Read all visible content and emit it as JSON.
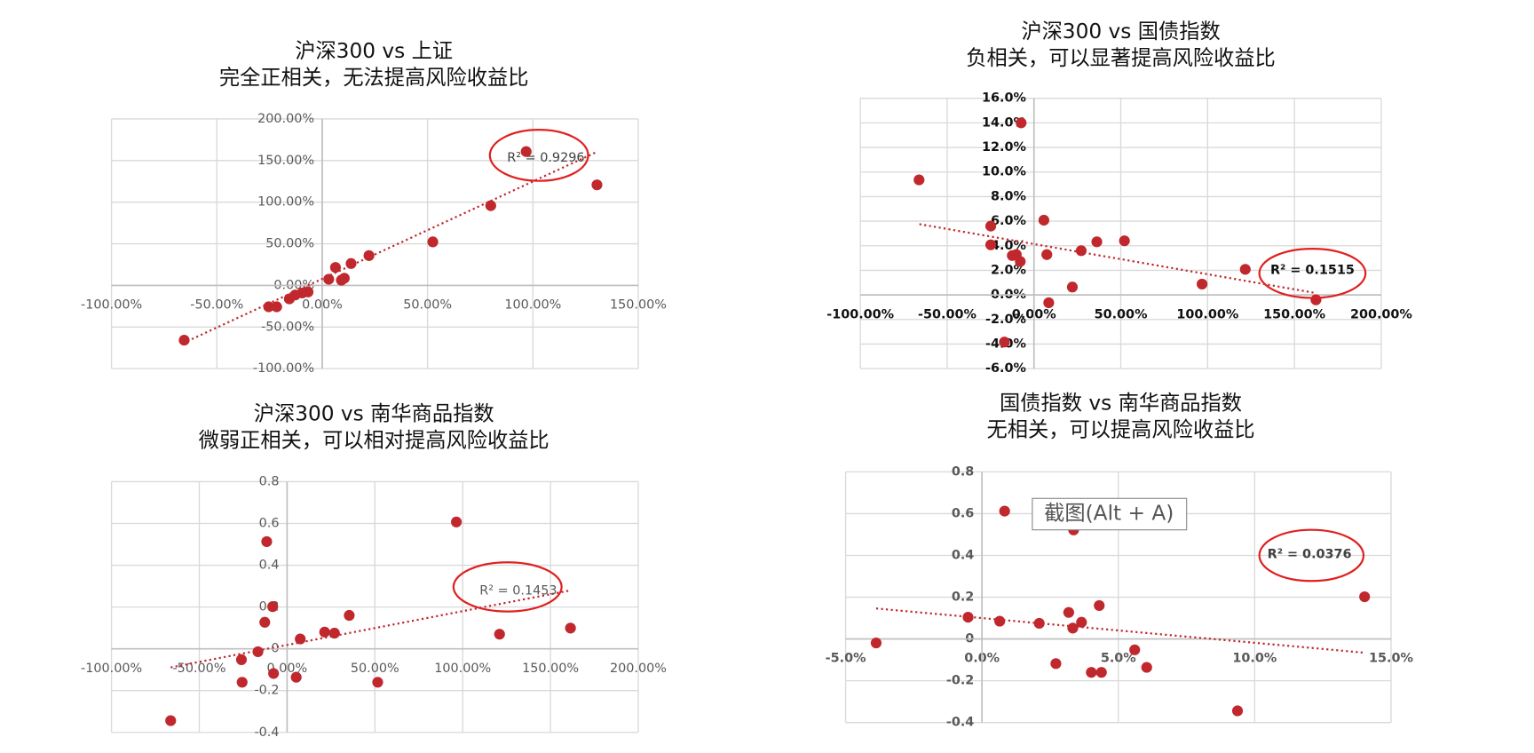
{
  "chart_data": [
    {
      "type": "scatter",
      "title": "沪深300 vs 上证",
      "subtitle": "完全正相关，无法提高风险收益比",
      "color": "#c0282d",
      "grid": true,
      "x": [
        -65.5,
        -25.4,
        -21.6,
        -15.6,
        -12.8,
        -9.5,
        -6.7,
        3.1,
        6.3,
        9.1,
        10.5,
        13.7,
        22.2,
        52.5,
        80,
        96.8,
        130.4
      ],
      "values": [
        -65.8,
        -25.7,
        -25.7,
        -16.2,
        -11.5,
        -9.1,
        -7.9,
        7.4,
        21.6,
        6.3,
        8.6,
        26.3,
        35.8,
        52.3,
        95.8,
        160.8,
        120.8
      ],
      "trendline": {
        "x": [
          -64,
          130
        ],
        "y": [
          -67,
          160
        ]
      },
      "annotation": "R² = 0.9296",
      "xlim": [
        -100,
        150
      ],
      "xticks": [
        {
          "value": -100,
          "label": "-100.00%"
        },
        {
          "value": -50,
          "label": "-50.00%"
        },
        {
          "value": 0,
          "label": "0.00%"
        },
        {
          "value": 50,
          "label": "50.00%"
        },
        {
          "value": 100,
          "label": "100.00%"
        },
        {
          "value": 150,
          "label": "150.00%"
        }
      ],
      "ylim": [
        -100,
        200
      ],
      "yticks": [
        {
          "value": -100,
          "label": "-100.00%"
        },
        {
          "value": -50,
          "label": "-50.00%"
        },
        {
          "value": 0,
          "label": "0.00%"
        },
        {
          "value": 50,
          "label": "50.00%"
        },
        {
          "value": 100,
          "label": "100.00%"
        },
        {
          "value": 150,
          "label": "150.00%"
        },
        {
          "value": 200,
          "label": "200.00%"
        }
      ]
    },
    {
      "type": "scatter",
      "title": "沪深300 vs 国债指数",
      "subtitle": "负相关，可以显著提高风险收益比",
      "color": "#c0282d",
      "grid": true,
      "x": [
        -66.2,
        -24.9,
        -24.9,
        -17.0,
        -12.5,
        -10.2,
        -7.9,
        -7.4,
        5.7,
        7.4,
        8.5,
        22.1,
        27.2,
        36.2,
        52.1,
        96.8,
        121.7,
        162.4
      ],
      "values": [
        9.36,
        5.6,
        4.08,
        -3.84,
        3.2,
        3.28,
        2.72,
        14.0,
        6.08,
        3.28,
        -0.64,
        0.64,
        3.6,
        4.32,
        4.4,
        0.88,
        2.08,
        -0.4
      ],
      "trendline": {
        "x": [
          -66,
          162
        ],
        "y": [
          5.76,
          0.16
        ]
      },
      "annotation": "R² = 0.1515",
      "xlim": [
        -100,
        200
      ],
      "xticks": [
        {
          "value": -100,
          "label": "-100.00%"
        },
        {
          "value": -50,
          "label": "-50.00%"
        },
        {
          "value": 0,
          "label": "0.00%"
        },
        {
          "value": 50,
          "label": "50.00%"
        },
        {
          "value": 100,
          "label": "100.00%"
        },
        {
          "value": 150,
          "label": "150.00%"
        },
        {
          "value": 200,
          "label": "200.00%"
        }
      ],
      "ylim": [
        -6,
        16
      ],
      "yticks": [
        {
          "value": -6,
          "label": "-6.0%"
        },
        {
          "value": -4,
          "label": "-4.0%"
        },
        {
          "value": -2,
          "label": "-2.0%"
        },
        {
          "value": 0,
          "label": "0.0%"
        },
        {
          "value": 2,
          "label": "2.0%"
        },
        {
          "value": 4,
          "label": "4.0%"
        },
        {
          "value": 6,
          "label": "6.0%"
        },
        {
          "value": 8,
          "label": "8.0%"
        },
        {
          "value": 10,
          "label": "10.0%"
        },
        {
          "value": 12,
          "label": "12.0%"
        },
        {
          "value": 14,
          "label": "14.0%"
        },
        {
          "value": 16,
          "label": "16.0%"
        }
      ]
    },
    {
      "type": "scatter",
      "title": "沪深300 vs 南华商品指数",
      "subtitle": "微弱正相关，可以相对提高风险收益比",
      "color": "#c0282d",
      "grid": true,
      "x": [
        -66.3,
        -26,
        -25.6,
        -16.6,
        -12.7,
        -11.6,
        -8.2,
        -7.7,
        5.2,
        7.5,
        21.4,
        27,
        35.4,
        51.6,
        96.4,
        121,
        161.4
      ],
      "values": [
        -0.344,
        -0.052,
        -0.16,
        -0.014,
        0.127,
        0.513,
        0.202,
        -0.118,
        -0.136,
        0.047,
        0.08,
        0.075,
        0.16,
        -0.16,
        0.607,
        0.07,
        0.099
      ],
      "trendline": {
        "x": [
          -66.3,
          160.4
        ],
        "y": [
          -0.089,
          0.278
        ]
      },
      "annotation": "R² = 0.1453",
      "xlim": [
        -100,
        200
      ],
      "xticks": [
        {
          "value": -100,
          "label": "-100.00%"
        },
        {
          "value": -50,
          "label": "-50.00%"
        },
        {
          "value": 0,
          "label": "0.00%"
        },
        {
          "value": 50,
          "label": "50.00%"
        },
        {
          "value": 100,
          "label": "100.00%"
        },
        {
          "value": 150,
          "label": "150.00%"
        },
        {
          "value": 200,
          "label": "200.00%"
        }
      ],
      "ylim": [
        -0.4,
        0.8
      ],
      "yticks": [
        -0.4,
        -0.2,
        0,
        0.2,
        0.4,
        0.6,
        0.8
      ]
    },
    {
      "type": "scatter",
      "title": "国债指数 vs 南华商品指数",
      "subtitle": "无相关，可以提高风险收益比",
      "color": "#c0282d",
      "grid": true,
      "x": [
        -3.88,
        -0.51,
        0.65,
        0.83,
        2.1,
        2.71,
        3.18,
        3.33,
        3.36,
        3.65,
        4.01,
        4.3,
        4.38,
        5.6,
        6.04,
        9.37,
        14.03
      ],
      "values": [
        -0.019,
        0.104,
        0.085,
        0.612,
        0.075,
        -0.118,
        0.127,
        0.052,
        0.522,
        0.08,
        -0.16,
        0.16,
        -0.16,
        -0.052,
        -0.136,
        -0.344,
        0.202
      ],
      "trendline": {
        "x": [
          -3.88,
          14.03
        ],
        "y": [
          0.146,
          -0.066
        ]
      },
      "annotation": "R² = 0.0376",
      "xlim": [
        -5,
        15
      ],
      "xticks": [
        {
          "value": -5,
          "label": "-5.0%"
        },
        {
          "value": 0,
          "label": "0.0%"
        },
        {
          "value": 5,
          "label": "5.0%"
        },
        {
          "value": 10,
          "label": "10.0%"
        },
        {
          "value": 15,
          "label": "15.0%"
        }
      ],
      "ylim": [
        -0.4,
        0.8
      ],
      "yticks": [
        -0.4,
        -0.2,
        0,
        0.2,
        0.4,
        0.6,
        0.8
      ]
    }
  ],
  "tooltip": "截图(Alt + A)"
}
